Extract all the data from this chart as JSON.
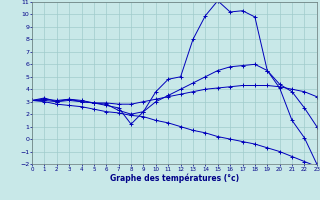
{
  "xlabel": "Graphe des températures (°c)",
  "background_color": "#c8e8e8",
  "grid_color": "#a0cccc",
  "line_color": "#0000bb",
  "xlim": [
    0,
    23
  ],
  "ylim": [
    -2,
    11
  ],
  "xticks": [
    0,
    1,
    2,
    3,
    4,
    5,
    6,
    7,
    8,
    9,
    10,
    11,
    12,
    13,
    14,
    15,
    16,
    17,
    18,
    19,
    20,
    21,
    22,
    23
  ],
  "yticks": [
    -2,
    -1,
    0,
    1,
    2,
    3,
    4,
    5,
    6,
    7,
    8,
    9,
    10,
    11
  ],
  "curve_temp": [
    3.1,
    3.3,
    3.0,
    3.2,
    3.1,
    2.9,
    2.7,
    2.5,
    1.2,
    2.2,
    3.8,
    4.8,
    5.0,
    8.0,
    9.9,
    11.1,
    10.2,
    10.3,
    9.8,
    5.5,
    4.1,
    1.5,
    0.1,
    -2.0
  ],
  "curve_mid": [
    3.1,
    3.2,
    3.1,
    3.2,
    3.0,
    2.9,
    2.8,
    2.3,
    2.0,
    2.2,
    3.0,
    3.5,
    4.0,
    4.5,
    5.0,
    5.5,
    5.8,
    5.9,
    6.0,
    5.5,
    4.4,
    3.8,
    2.5,
    1.0
  ],
  "curve_flat": [
    3.1,
    3.1,
    3.0,
    3.1,
    3.0,
    2.9,
    2.9,
    2.8,
    2.8,
    3.0,
    3.2,
    3.4,
    3.6,
    3.8,
    4.0,
    4.1,
    4.2,
    4.3,
    4.3,
    4.3,
    4.2,
    4.0,
    3.8,
    3.4
  ],
  "curve_decline": [
    3.1,
    3.0,
    2.8,
    2.7,
    2.6,
    2.4,
    2.2,
    2.1,
    1.9,
    1.8,
    1.5,
    1.3,
    1.0,
    0.7,
    0.5,
    0.2,
    0.0,
    -0.2,
    -0.4,
    -0.7,
    -1.0,
    -1.4,
    -1.8,
    -2.2
  ]
}
